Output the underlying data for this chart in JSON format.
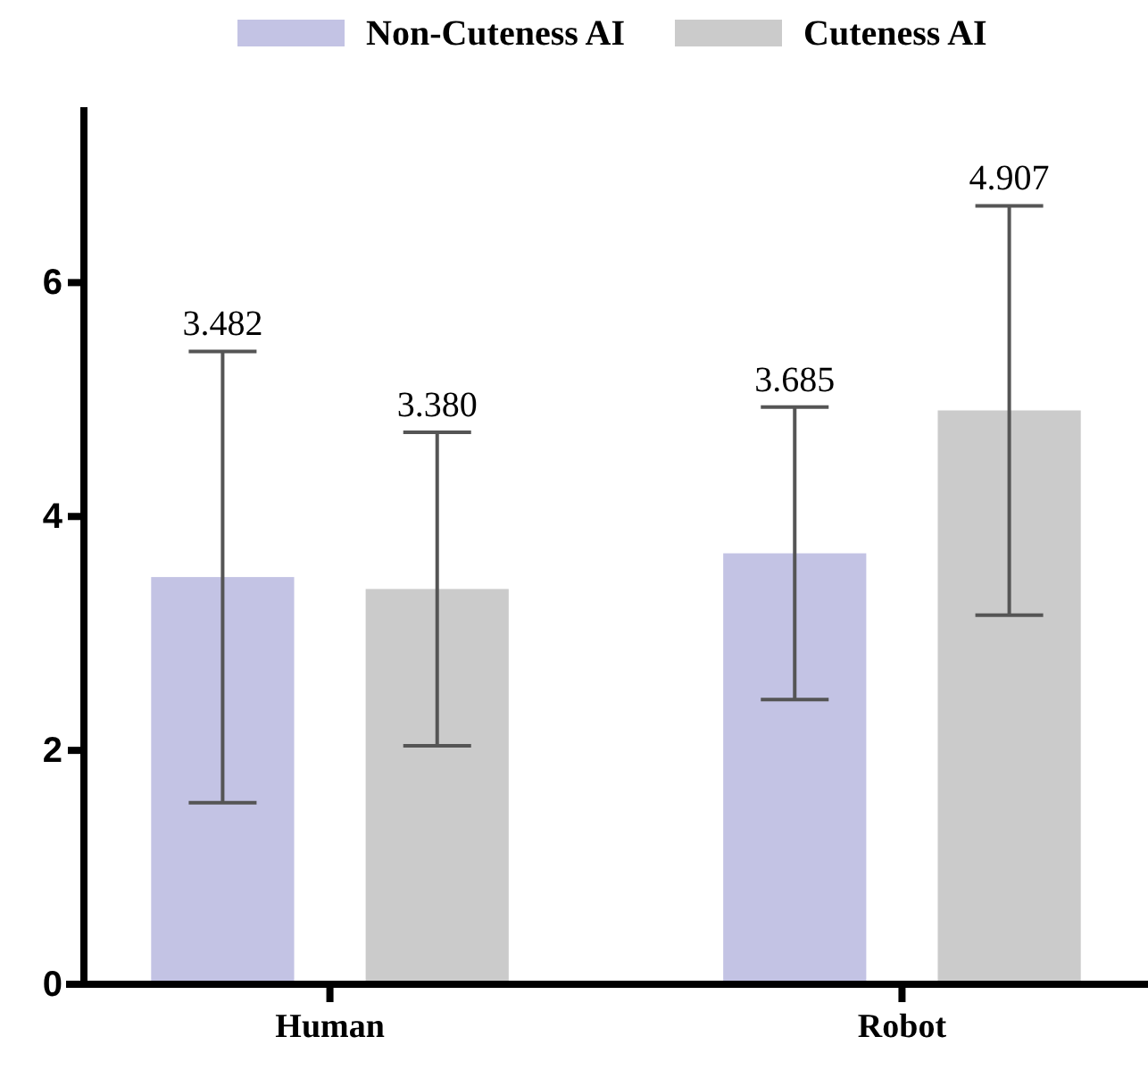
{
  "chart_data": {
    "type": "bar",
    "categories": [
      "Human",
      "Robot"
    ],
    "series": [
      {
        "name": "Non-Cuteness AI",
        "color": "#c3c3e4",
        "values": [
          3.482,
          3.685
        ],
        "errors": [
          1.93,
          1.25
        ]
      },
      {
        "name": "Cuteness AI",
        "color": "#cbcbcb",
        "values": [
          3.38,
          4.907
        ],
        "errors": [
          1.34,
          1.75
        ]
      }
    ],
    "value_labels": [
      [
        "3.482",
        "3.685"
      ],
      [
        "3.380",
        "4.907"
      ]
    ],
    "ylim": [
      0,
      7.5
    ],
    "yticks": [
      0,
      2,
      4,
      6
    ],
    "grid": false,
    "legend": "top"
  }
}
